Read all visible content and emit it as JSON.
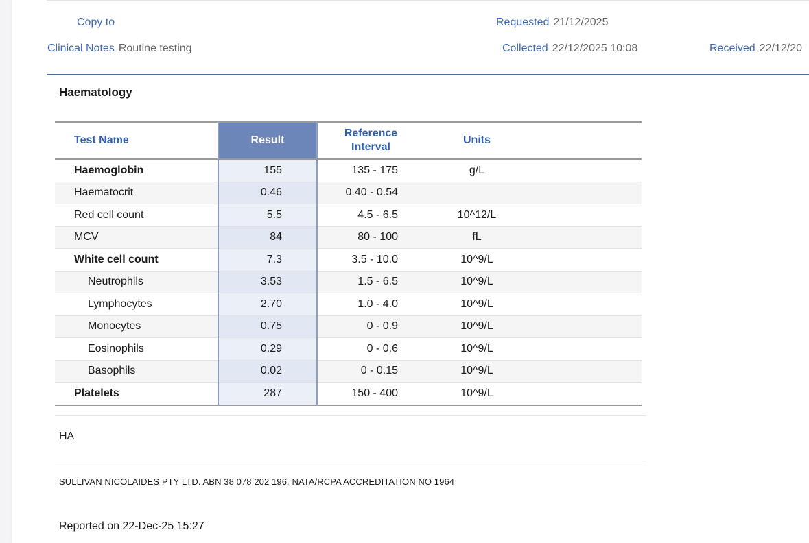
{
  "header": {
    "copy_to_label": "Copy to",
    "clinical_notes_label": "Clinical Notes",
    "clinical_notes_value": "Routine testing",
    "requested_label": "Requested",
    "requested_value": "21/12/2025",
    "collected_label": "Collected",
    "collected_value": "22/12/2025 10:08",
    "received_label": "Received",
    "received_value": "22/12/20"
  },
  "section_title": "Haematology",
  "table": {
    "columns": {
      "name": "Test Name",
      "result": "Result",
      "reference_line1": "Reference",
      "reference_line2": "Interval",
      "units": "Units"
    },
    "rows": [
      {
        "name": "Haemoglobin",
        "result": "155",
        "reference": "135 - 175",
        "units": "g/L"
      },
      {
        "name": "Haematocrit",
        "result": "0.46",
        "reference": "0.40 - 0.54",
        "units": ""
      },
      {
        "name": "Red cell count",
        "result": "5.5",
        "reference": "4.5 - 6.5",
        "units": "10^12/L"
      },
      {
        "name": "MCV",
        "result": "84",
        "reference": "80 - 100",
        "units": "fL"
      },
      {
        "name": "White cell count",
        "result": "7.3",
        "reference": "3.5 - 10.0",
        "units": "10^9/L"
      },
      {
        "name": "Neutrophils",
        "result": "3.53",
        "reference": "1.5 - 6.5",
        "units": "10^9/L"
      },
      {
        "name": "Lymphocytes",
        "result": "2.70",
        "reference": "1.0 - 4.0",
        "units": "10^9/L"
      },
      {
        "name": "Monocytes",
        "result": "0.75",
        "reference": "0 - 0.9",
        "units": "10^9/L"
      },
      {
        "name": "Eosinophils",
        "result": "0.29",
        "reference": "0 - 0.6",
        "units": "10^9/L"
      },
      {
        "name": "Basophils",
        "result": "0.02",
        "reference": "0 - 0.15",
        "units": "10^9/L"
      },
      {
        "name": "Platelets",
        "result": "287",
        "reference": "150 - 400",
        "units": "10^9/L"
      }
    ]
  },
  "initials": "HA",
  "lab_note": "SULLIVAN NICOLAIDES PTY LTD. ABN 38 078 202 196. NATA/RCPA ACCREDITATION NO 1964",
  "reported_on": "Reported on 22-Dec-25 15:27"
}
